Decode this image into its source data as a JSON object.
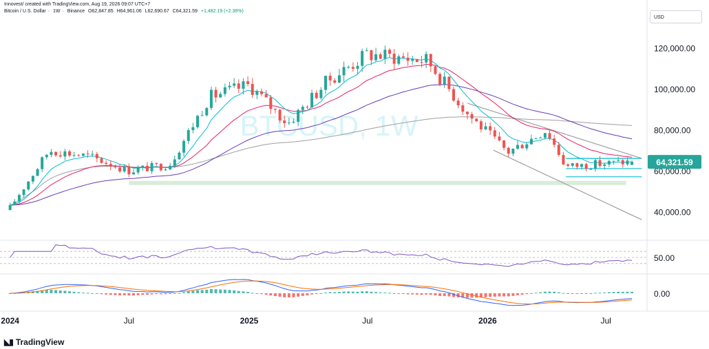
{
  "header": {
    "attribution": "Innovest/ created with TradingView.com, Aug 19, 2026 09:07 UTC+7"
  },
  "symbol": {
    "name": "Bitcoin / U.S. Dollar",
    "interval": "1W",
    "exchange": "Binance",
    "open": "O62,847.85",
    "high": "H64,961.06",
    "low": "L62,690.67",
    "close": "C64,321.59",
    "change": "+1,482.19 (+2.36%)"
  },
  "currency_label": "USD",
  "watermark": "BTCUSD, 1W",
  "brand": "TradingView",
  "colors": {
    "up": "#26a69a",
    "down": "#ef5350",
    "ema_fast": "#00bcd4",
    "ema_mid": "#e91e63",
    "ema_slow": "#673ab7",
    "ma_long": "#9e9e9e",
    "rsi": "#7e57c2",
    "macd": "#2962ff",
    "signal": "#ff6d00",
    "support_zone": "#c8e6c9",
    "price_badge": "#26a69a"
  },
  "chart_data": [
    {
      "type": "candlestick",
      "x_ticks": [
        "2024",
        "Jul",
        "2025",
        "Jul",
        "2026",
        "Jul"
      ],
      "y_ticks": [
        "120,000.00",
        "100,000.00",
        "80,000.00",
        "60,000.00",
        "40,000.00"
      ],
      "ylim": [
        29000,
        130000
      ],
      "last_price": "64,321.59",
      "approx_close_path": [
        {
          "date": "2024-01",
          "close": 42000
        },
        {
          "date": "2024-03",
          "close": 70000
        },
        {
          "date": "2024-05",
          "close": 67000
        },
        {
          "date": "2024-07",
          "close": 60000
        },
        {
          "date": "2024-09",
          "close": 63000
        },
        {
          "date": "2024-11",
          "close": 96000
        },
        {
          "date": "2025-01",
          "close": 102000
        },
        {
          "date": "2025-03",
          "close": 83000
        },
        {
          "date": "2025-05",
          "close": 104000
        },
        {
          "date": "2025-07",
          "close": 117000
        },
        {
          "date": "2025-10",
          "close": 114000
        },
        {
          "date": "2025-12",
          "close": 88000
        },
        {
          "date": "2026-02",
          "close": 69000
        },
        {
          "date": "2026-04",
          "close": 80000
        },
        {
          "date": "2026-05",
          "close": 62000
        },
        {
          "date": "2026-08",
          "close": 64321.59
        }
      ],
      "levels": [
        {
          "price": 66000
        },
        {
          "price": 61000
        },
        {
          "price": 57000
        },
        {
          "price": 54000
        }
      ]
    },
    {
      "type": "line",
      "ytick": "50.00",
      "ylim": [
        0,
        100
      ],
      "bands": [
        70,
        50,
        30
      ]
    },
    {
      "type": "bar",
      "ytick": "0.00"
    }
  ]
}
